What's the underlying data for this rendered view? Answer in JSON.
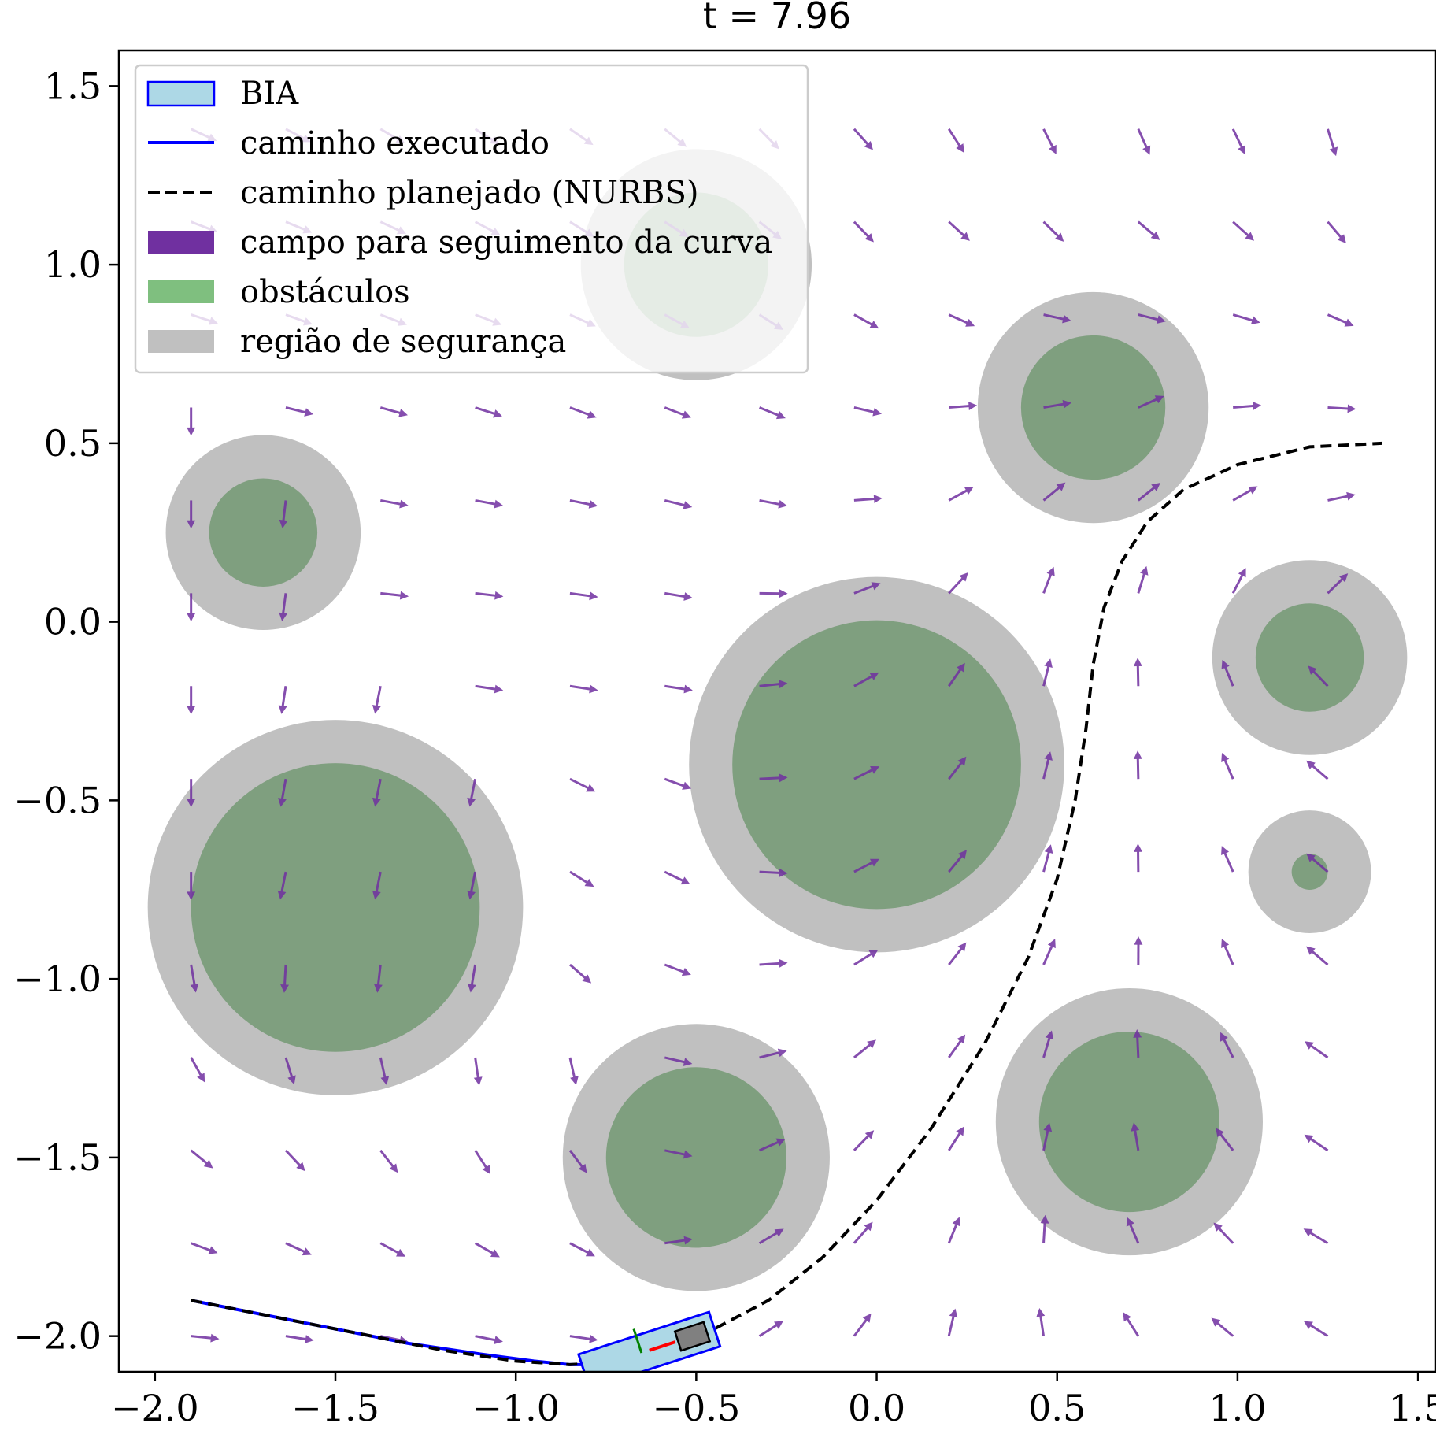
{
  "chart_data": {
    "type": "vector-field-trajectory",
    "title": "t = 7.96",
    "xlabel": "",
    "ylabel": "",
    "xlim": [
      -2.1,
      1.55
    ],
    "ylim": [
      -2.1,
      1.6
    ],
    "x_ticks": [
      {
        "value": -2.0,
        "label": "−2.0"
      },
      {
        "value": -1.5,
        "label": "−1.5"
      },
      {
        "value": -1.0,
        "label": "−1.0"
      },
      {
        "value": -0.5,
        "label": "−0.5"
      },
      {
        "value": 0.0,
        "label": "0.0"
      },
      {
        "value": 0.5,
        "label": "0.5"
      },
      {
        "value": 1.0,
        "label": "1.0"
      },
      {
        "value": 1.5,
        "label": "1.5"
      }
    ],
    "y_ticks": [
      {
        "value": 1.5,
        "label": "1.5"
      },
      {
        "value": 1.0,
        "label": "1.0"
      },
      {
        "value": 0.5,
        "label": "0.5"
      },
      {
        "value": 0.0,
        "label": "0.0"
      },
      {
        "value": -0.5,
        "label": "−0.5"
      },
      {
        "value": -1.0,
        "label": "−1.0"
      },
      {
        "value": -1.5,
        "label": "−1.5"
      },
      {
        "value": -2.0,
        "label": "−2.0"
      }
    ],
    "grid": false,
    "legend_position": "upper-left",
    "legend": [
      {
        "key": "bia",
        "label": "BIA"
      },
      {
        "key": "executed",
        "label": "caminho executado"
      },
      {
        "key": "planned",
        "label": "caminho planejado (NURBS)"
      },
      {
        "key": "field",
        "label": "campo para seguimento da curva"
      },
      {
        "key": "obstacles",
        "label": "obstáculos"
      },
      {
        "key": "safety",
        "label": "região de segurança"
      }
    ],
    "colors": {
      "bia_fill": "#add8e6",
      "bia_edge": "#0000ff",
      "executed": "#0000ff",
      "planned": "#000000",
      "field": "#7030a0",
      "obstacle": "#7f9f7f",
      "safety": "#c0c0c0"
    },
    "obstacles": [
      {
        "x": -1.7,
        "y": 0.25,
        "r": 0.15,
        "safety_r": 0.27
      },
      {
        "x": -1.5,
        "y": -0.8,
        "r": 0.4,
        "safety_r": 0.52
      },
      {
        "x": -0.5,
        "y": 1.0,
        "r": 0.2,
        "safety_r": 0.32
      },
      {
        "x": -0.5,
        "y": -1.5,
        "r": 0.25,
        "safety_r": 0.37
      },
      {
        "x": 0.0,
        "y": -0.4,
        "r": 0.4,
        "safety_r": 0.52
      },
      {
        "x": 0.6,
        "y": 0.6,
        "r": 0.2,
        "safety_r": 0.32
      },
      {
        "x": 1.2,
        "y": -0.1,
        "r": 0.15,
        "safety_r": 0.27
      },
      {
        "x": 1.2,
        "y": -0.7,
        "r": 0.05,
        "safety_r": 0.17
      },
      {
        "x": 0.7,
        "y": -1.4,
        "r": 0.25,
        "safety_r": 0.37
      }
    ],
    "planned_path": {
      "x": [
        -1.9,
        -1.5,
        -1.2,
        -1.0,
        -0.85,
        -0.7,
        -0.55,
        -0.45,
        -0.3,
        -0.15,
        0.0,
        0.15,
        0.3,
        0.42,
        0.5,
        0.55,
        0.58,
        0.6,
        0.63,
        0.68,
        0.75,
        0.85,
        1.0,
        1.2,
        1.4
      ],
      "y": [
        -1.9,
        -1.98,
        -2.04,
        -2.07,
        -2.08,
        -2.07,
        -2.03,
        -1.98,
        -1.9,
        -1.78,
        -1.62,
        -1.42,
        -1.18,
        -0.94,
        -0.72,
        -0.5,
        -0.3,
        -0.12,
        0.04,
        0.17,
        0.28,
        0.37,
        0.44,
        0.49,
        0.5
      ]
    },
    "executed_path": {
      "x": [
        -1.9,
        -1.6,
        -1.3,
        -1.1,
        -0.95,
        -0.85,
        -0.75,
        -0.65
      ],
      "y": [
        -1.9,
        -1.96,
        -2.02,
        -2.05,
        -2.07,
        -2.08,
        -2.08,
        -2.07
      ]
    },
    "robot": {
      "x": -0.63,
      "y": -2.04,
      "heading_deg": 18,
      "length": 0.38,
      "width": 0.1
    }
  }
}
